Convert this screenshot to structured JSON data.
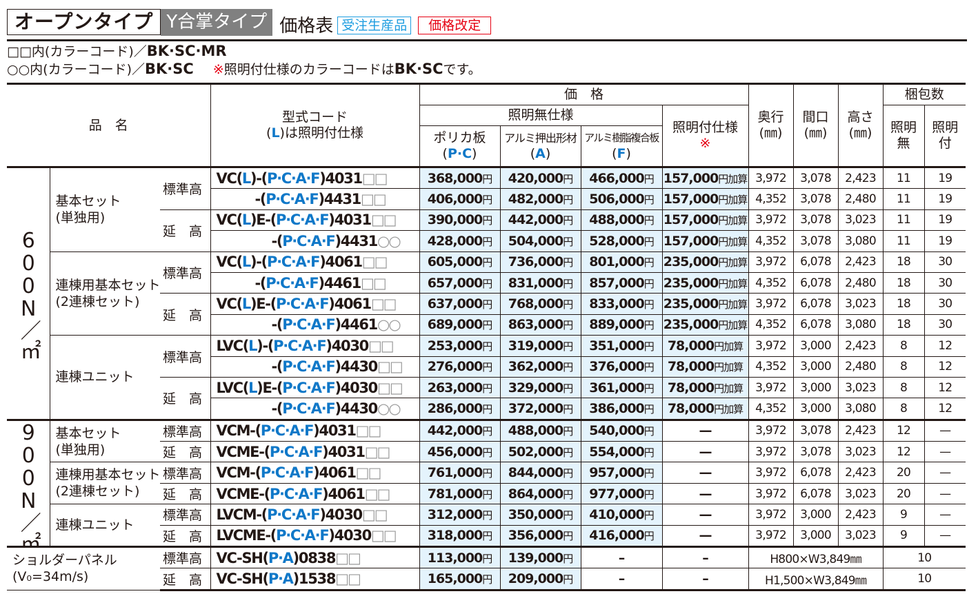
{
  "title": {
    "main": "オープンタイプ",
    "sub": "Y合掌タイプ",
    "table": "価格表",
    "badge_order": "受注生産品",
    "badge_revised": "価格改定"
  },
  "colors": {
    "accent_blue": "#1078c8",
    "badge_blue": "#1e9de0",
    "red": "#e60012",
    "price_bg": "#e4f3fc",
    "sub_title_bg": "#808080"
  },
  "notes": {
    "line1": {
      "prefix": "□□内(カラーコード)／",
      "codes": "BK·SC·MR"
    },
    "line2": {
      "prefix": "○○内(カラーコード)／",
      "codes": "BK·SC",
      "mark": "※",
      "text": "照明付仕様のカラーコードは",
      "codes2": "BK·SC",
      "suffix": "です。"
    }
  },
  "header": {
    "name": "品　名",
    "code1": "型式コード",
    "code2_l": "L",
    "code2_rest": "は照明付仕様",
    "code2_open": "(",
    "code2_close": ")",
    "price": "価　格",
    "nolight": "照明無仕様",
    "pc": "ポリカ板",
    "pc_code": "P·C",
    "a": "アルミ押出形材",
    "a_code": "A",
    "f": "アルミ樹脂複合板",
    "f_code": "F",
    "light": "照明付仕様",
    "light_mark": "※",
    "depth": "奥行",
    "width": "間口",
    "height": "高さ",
    "unit": "(㎜)",
    "pack": "梱包数",
    "pack_no1": "照明",
    "pack_no2": "無",
    "pack_yes1": "照明",
    "pack_yes2": "付"
  },
  "units": {
    "yen": "円",
    "add": "円加算"
  },
  "groups": [
    {
      "load": "600N／㎡",
      "products": [
        {
          "name1": "基本セット",
          "name2": "(単独用)",
          "heights": [
            {
              "label": "標準高",
              "rows": [
                {
                  "code": [
                    [
                      "VC(",
                      0
                    ],
                    [
                      "L",
                      1
                    ],
                    [
                      ")-(",
                      0
                    ],
                    [
                      "P·C·A·F",
                      1
                    ],
                    [
                      ")4031",
                      0
                    ],
                    [
                      "□□",
                      2
                    ]
                  ],
                  "pc": "368,000",
                  "a": "420,000",
                  "f": "466,000",
                  "light": "157,000",
                  "depth": "3,972",
                  "width": "3,078",
                  "height": "2,423",
                  "pack_no": "11",
                  "pack_yes": "19"
                },
                {
                  "code": [
                    [
                      "-(",
                      0
                    ],
                    [
                      "P·C·A·F",
                      1
                    ],
                    [
                      ")4431",
                      0
                    ],
                    [
                      "□□",
                      2
                    ]
                  ],
                  "cont": 1,
                  "pc": "406,000",
                  "a": "482,000",
                  "f": "506,000",
                  "light": "157,000",
                  "depth": "4,352",
                  "width": "3,078",
                  "height": "2,480",
                  "pack_no": "11",
                  "pack_yes": "19"
                }
              ]
            },
            {
              "label": "延　高",
              "rows": [
                {
                  "code": [
                    [
                      "VC(",
                      0
                    ],
                    [
                      "L",
                      1
                    ],
                    [
                      ")E-(",
                      0
                    ],
                    [
                      "P·C·A·F",
                      1
                    ],
                    [
                      ")4031",
                      0
                    ],
                    [
                      "□□",
                      2
                    ]
                  ],
                  "pc": "390,000",
                  "a": "442,000",
                  "f": "488,000",
                  "light": "157,000",
                  "depth": "3,972",
                  "width": "3,078",
                  "height": "3,023",
                  "pack_no": "11",
                  "pack_yes": "19"
                },
                {
                  "code": [
                    [
                      "-(",
                      0
                    ],
                    [
                      "P·C·A·F",
                      1
                    ],
                    [
                      ")4431",
                      0
                    ],
                    [
                      "○○",
                      2
                    ]
                  ],
                  "cont": 2,
                  "pc": "428,000",
                  "a": "504,000",
                  "f": "528,000",
                  "light": "157,000",
                  "depth": "4,352",
                  "width": "3,078",
                  "height": "3,080",
                  "pack_no": "11",
                  "pack_yes": "19"
                }
              ]
            }
          ]
        },
        {
          "name1": "連棟用基本セット",
          "name2": "(2連棟セット)",
          "heights": [
            {
              "label": "標準高",
              "rows": [
                {
                  "code": [
                    [
                      "VC(",
                      0
                    ],
                    [
                      "L",
                      1
                    ],
                    [
                      ")-(",
                      0
                    ],
                    [
                      "P·C·A·F",
                      1
                    ],
                    [
                      ")4061",
                      0
                    ],
                    [
                      "□□",
                      2
                    ]
                  ],
                  "pc": "605,000",
                  "a": "736,000",
                  "f": "801,000",
                  "light": "235,000",
                  "depth": "3,972",
                  "width": "6,078",
                  "height": "2,423",
                  "pack_no": "18",
                  "pack_yes": "30"
                },
                {
                  "code": [
                    [
                      "-(",
                      0
                    ],
                    [
                      "P·C·A·F",
                      1
                    ],
                    [
                      ")4461",
                      0
                    ],
                    [
                      "□□",
                      2
                    ]
                  ],
                  "cont": 1,
                  "pc": "657,000",
                  "a": "831,000",
                  "f": "857,000",
                  "light": "235,000",
                  "depth": "4,352",
                  "width": "6,078",
                  "height": "2,480",
                  "pack_no": "18",
                  "pack_yes": "30"
                }
              ]
            },
            {
              "label": "延　高",
              "rows": [
                {
                  "code": [
                    [
                      "VC(",
                      0
                    ],
                    [
                      "L",
                      1
                    ],
                    [
                      ")E-(",
                      0
                    ],
                    [
                      "P·C·A·F",
                      1
                    ],
                    [
                      ")4061",
                      0
                    ],
                    [
                      "□□",
                      2
                    ]
                  ],
                  "pc": "637,000",
                  "a": "768,000",
                  "f": "833,000",
                  "light": "235,000",
                  "depth": "3,972",
                  "width": "6,078",
                  "height": "3,023",
                  "pack_no": "18",
                  "pack_yes": "30"
                },
                {
                  "code": [
                    [
                      "-(",
                      0
                    ],
                    [
                      "P·C·A·F",
                      1
                    ],
                    [
                      ")4461",
                      0
                    ],
                    [
                      "○○",
                      2
                    ]
                  ],
                  "cont": 2,
                  "pc": "689,000",
                  "a": "863,000",
                  "f": "889,000",
                  "light": "235,000",
                  "depth": "4,352",
                  "width": "6,078",
                  "height": "3,080",
                  "pack_no": "18",
                  "pack_yes": "30"
                }
              ]
            }
          ]
        },
        {
          "name1": "連棟ユニット",
          "name2": "",
          "heights": [
            {
              "label": "標準高",
              "rows": [
                {
                  "code": [
                    [
                      "LVC(",
                      0
                    ],
                    [
                      "L",
                      1
                    ],
                    [
                      ")-(",
                      0
                    ],
                    [
                      "P·C·A·F",
                      1
                    ],
                    [
                      ")4030",
                      0
                    ],
                    [
                      "□□",
                      2
                    ]
                  ],
                  "pc": "253,000",
                  "a": "319,000",
                  "f": "351,000",
                  "light": "78,000",
                  "depth": "3,972",
                  "width": "3,000",
                  "height": "2,423",
                  "pack_no": "8",
                  "pack_yes": "12"
                },
                {
                  "code": [
                    [
                      "-(",
                      0
                    ],
                    [
                      "P·C·A·F",
                      1
                    ],
                    [
                      ")4430",
                      0
                    ],
                    [
                      "□□",
                      2
                    ]
                  ],
                  "cont": 2,
                  "pc": "276,000",
                  "a": "362,000",
                  "f": "376,000",
                  "light": "78,000",
                  "depth": "4,352",
                  "width": "3,000",
                  "height": "2,480",
                  "pack_no": "8",
                  "pack_yes": "12"
                }
              ]
            },
            {
              "label": "延　高",
              "rows": [
                {
                  "code": [
                    [
                      "LVC(",
                      0
                    ],
                    [
                      "L",
                      1
                    ],
                    [
                      ")E-(",
                      0
                    ],
                    [
                      "P·C·A·F",
                      1
                    ],
                    [
                      ")4030",
                      0
                    ],
                    [
                      "□□",
                      2
                    ]
                  ],
                  "pc": "263,000",
                  "a": "329,000",
                  "f": "361,000",
                  "light": "78,000",
                  "depth": "3,972",
                  "width": "3,000",
                  "height": "3,023",
                  "pack_no": "8",
                  "pack_yes": "12"
                },
                {
                  "code": [
                    [
                      "-(",
                      0
                    ],
                    [
                      "P·C·A·F",
                      1
                    ],
                    [
                      ")4430",
                      0
                    ],
                    [
                      "○○",
                      2
                    ]
                  ],
                  "cont": 2,
                  "pc": "286,000",
                  "a": "372,000",
                  "f": "386,000",
                  "light": "78,000",
                  "depth": "4,352",
                  "width": "3,000",
                  "height": "3,080",
                  "pack_no": "8",
                  "pack_yes": "12"
                }
              ]
            }
          ]
        }
      ]
    },
    {
      "load": "900N／㎡",
      "products": [
        {
          "name1": "基本セット",
          "name2": "(単独用)",
          "heights": [
            {
              "label": "標準高",
              "rows": [
                {
                  "code": [
                    [
                      "VCM-(",
                      0
                    ],
                    [
                      "P·C·A·F",
                      1
                    ],
                    [
                      ")4031",
                      0
                    ],
                    [
                      "□□",
                      2
                    ]
                  ],
                  "pc": "442,000",
                  "a": "488,000",
                  "f": "540,000",
                  "light": "—",
                  "depth": "3,972",
                  "width": "3,078",
                  "height": "2,423",
                  "pack_no": "12",
                  "pack_yes": "—"
                }
              ]
            },
            {
              "label": "延　高",
              "rows": [
                {
                  "code": [
                    [
                      "VCME-(",
                      0
                    ],
                    [
                      "P·C·A·F",
                      1
                    ],
                    [
                      ")4031",
                      0
                    ],
                    [
                      "□□",
                      2
                    ]
                  ],
                  "pc": "456,000",
                  "a": "502,000",
                  "f": "554,000",
                  "light": "—",
                  "depth": "3,972",
                  "width": "3,078",
                  "height": "3,023",
                  "pack_no": "12",
                  "pack_yes": "—"
                }
              ]
            }
          ]
        },
        {
          "name1": "連棟用基本セット",
          "name2": "(2連棟セット)",
          "heights": [
            {
              "label": "標準高",
              "rows": [
                {
                  "code": [
                    [
                      "VCM-(",
                      0
                    ],
                    [
                      "P·C·A·F",
                      1
                    ],
                    [
                      ")4061",
                      0
                    ],
                    [
                      "□□",
                      2
                    ]
                  ],
                  "pc": "761,000",
                  "a": "844,000",
                  "f": "957,000",
                  "light": "—",
                  "depth": "3,972",
                  "width": "6,078",
                  "height": "2,423",
                  "pack_no": "20",
                  "pack_yes": "—"
                }
              ]
            },
            {
              "label": "延　高",
              "rows": [
                {
                  "code": [
                    [
                      "VCME-(",
                      0
                    ],
                    [
                      "P·C·A·F",
                      1
                    ],
                    [
                      ")4061",
                      0
                    ],
                    [
                      "□□",
                      2
                    ]
                  ],
                  "pc": "781,000",
                  "a": "864,000",
                  "f": "977,000",
                  "light": "—",
                  "depth": "3,972",
                  "width": "6,078",
                  "height": "3,023",
                  "pack_no": "20",
                  "pack_yes": "—"
                }
              ]
            }
          ]
        },
        {
          "name1": "連棟ユニット",
          "name2": "",
          "heights": [
            {
              "label": "標準高",
              "rows": [
                {
                  "code": [
                    [
                      "LVCM-(",
                      0
                    ],
                    [
                      "P·C·A·F",
                      1
                    ],
                    [
                      ")4030",
                      0
                    ],
                    [
                      "□□",
                      2
                    ]
                  ],
                  "pc": "312,000",
                  "a": "350,000",
                  "f": "410,000",
                  "light": "—",
                  "depth": "3,972",
                  "width": "3,000",
                  "height": "2,423",
                  "pack_no": "9",
                  "pack_yes": "—"
                }
              ]
            },
            {
              "label": "延　高",
              "rows": [
                {
                  "code": [
                    [
                      "LVCME-(",
                      0
                    ],
                    [
                      "P·C·A·F",
                      1
                    ],
                    [
                      ")4030",
                      0
                    ],
                    [
                      "□□",
                      2
                    ]
                  ],
                  "pc": "318,000",
                  "a": "356,000",
                  "f": "416,000",
                  "light": "—",
                  "depth": "3,972",
                  "width": "3,000",
                  "height": "3,023",
                  "pack_no": "9",
                  "pack_yes": "—"
                }
              ]
            }
          ]
        }
      ]
    }
  ],
  "shoulder": {
    "name1": "ショルダーパネル",
    "name2": "(V₀=34m/s)",
    "rows": [
      {
        "label": "標準高",
        "code": [
          [
            "VC-SH(",
            0
          ],
          [
            "P·A",
            1
          ],
          [
            ")0838",
            0
          ],
          [
            "□□",
            2
          ]
        ],
        "pc": "113,000",
        "a": "139,000",
        "f": "–",
        "light": "–",
        "size": "H800×W3,849㎜",
        "pack": "10"
      },
      {
        "label": "延　高",
        "code": [
          [
            "VC-SH(",
            0
          ],
          [
            "P·A",
            1
          ],
          [
            ")1538",
            0
          ],
          [
            "□□",
            2
          ]
        ],
        "pc": "165,000",
        "a": "209,000",
        "f": "–",
        "light": "–",
        "size": "H1,500×W3,849㎜",
        "pack": "10"
      }
    ]
  }
}
